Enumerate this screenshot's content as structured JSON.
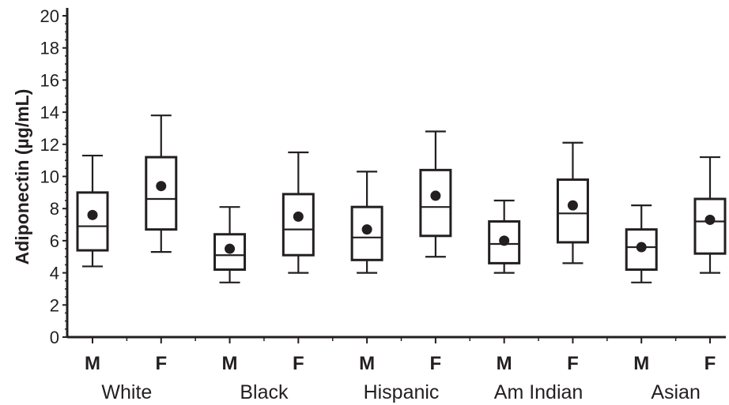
{
  "chart_data": {
    "type": "box",
    "ylabel": "Adiponectin (µg/mL)",
    "ylim": [
      0,
      20
    ],
    "yticks": [
      "0",
      "2",
      "4",
      "6",
      "8",
      "10",
      "12",
      "14",
      "16",
      "18",
      "20"
    ],
    "groups": [
      {
        "label": "White",
        "boxes": [
          {
            "sex": "M",
            "min": 4.4,
            "q1": 5.4,
            "median": 6.9,
            "q3": 9.0,
            "max": 11.3,
            "mean": 7.6
          },
          {
            "sex": "F",
            "min": 5.3,
            "q1": 6.7,
            "median": 8.6,
            "q3": 11.2,
            "max": 13.8,
            "mean": 9.4
          }
        ]
      },
      {
        "label": "Black",
        "boxes": [
          {
            "sex": "M",
            "min": 3.4,
            "q1": 4.2,
            "median": 5.1,
            "q3": 6.4,
            "max": 8.1,
            "mean": 5.5
          },
          {
            "sex": "F",
            "min": 4.0,
            "q1": 5.1,
            "median": 6.7,
            "q3": 8.9,
            "max": 11.5,
            "mean": 7.5
          }
        ]
      },
      {
        "label": "Hispanic",
        "boxes": [
          {
            "sex": "M",
            "min": 4.0,
            "q1": 4.8,
            "median": 6.2,
            "q3": 8.1,
            "max": 10.3,
            "mean": 6.7
          },
          {
            "sex": "F",
            "min": 5.0,
            "q1": 6.3,
            "median": 8.1,
            "q3": 10.4,
            "max": 12.8,
            "mean": 8.8
          }
        ]
      },
      {
        "label": "Am Indian",
        "boxes": [
          {
            "sex": "M",
            "min": 4.0,
            "q1": 4.6,
            "median": 5.8,
            "q3": 7.2,
            "max": 8.5,
            "mean": 6.0
          },
          {
            "sex": "F",
            "min": 4.6,
            "q1": 5.9,
            "median": 7.7,
            "q3": 9.8,
            "max": 12.1,
            "mean": 8.2
          }
        ]
      },
      {
        "label": "Asian",
        "boxes": [
          {
            "sex": "M",
            "min": 3.4,
            "q1": 4.2,
            "median": 5.6,
            "q3": 6.7,
            "max": 8.2,
            "mean": 5.6
          },
          {
            "sex": "F",
            "min": 4.0,
            "q1": 5.2,
            "median": 7.2,
            "q3": 8.6,
            "max": 11.2,
            "mean": 7.3
          }
        ]
      }
    ],
    "grid": false,
    "legend": "none",
    "colors": {
      "ink": "#231f20",
      "background": "#ffffff"
    }
  }
}
